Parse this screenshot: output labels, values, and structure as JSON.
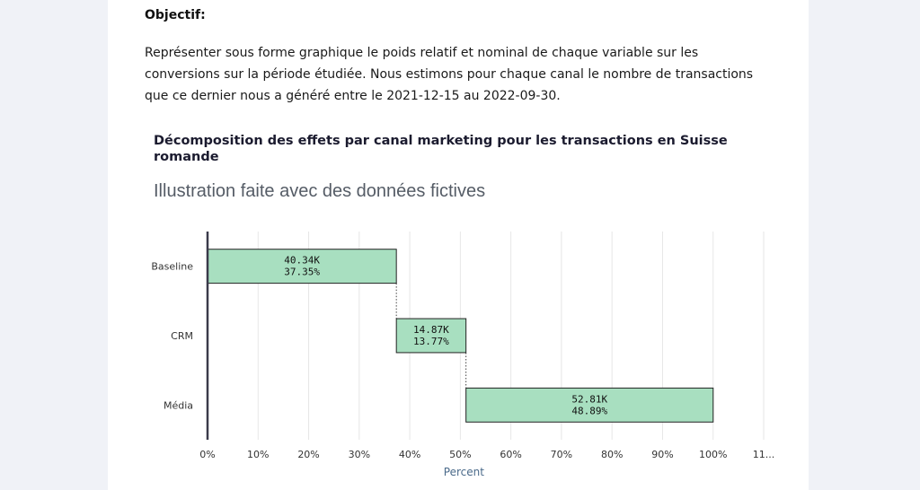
{
  "doc": {
    "heading": "Objectif:",
    "paragraph": "Représenter sous forme graphique le poids relatif et nominal de chaque variable sur les conversions sur la période étudiée. Nous estimons pour chaque canal le nombre de transactions que ce dernier nous a généré entre le 2021-12-15 au 2022-09-30."
  },
  "chart_data": {
    "type": "bar",
    "orientation": "horizontal-waterfall",
    "title": "Décomposition des effets par canal marketing pour les transactions en Suisse romande",
    "subtitle": "Illustration faite avec des données fictives",
    "xlabel": "Percent",
    "ylabel": "",
    "xlim": [
      0,
      110
    ],
    "grid": true,
    "x_ticks": [
      "0%",
      "10%",
      "20%",
      "30%",
      "40%",
      "50%",
      "60%",
      "70%",
      "80%",
      "90%",
      "100%",
      "11..."
    ],
    "categories": [
      "Baseline",
      "CRM",
      "Média"
    ],
    "start": [
      0,
      37.35,
      51.12
    ],
    "values": [
      37.35,
      13.77,
      48.89
    ],
    "labels_count": [
      "40.34K",
      "14.87K",
      "52.81K"
    ],
    "labels_percent": [
      "37.35%",
      "13.77%",
      "48.89%"
    ],
    "bar_color": "#a8dfc0",
    "bar_stroke": "#222222",
    "grid_color": "#e6e6e6",
    "axis_color": "#3a3a4a"
  }
}
